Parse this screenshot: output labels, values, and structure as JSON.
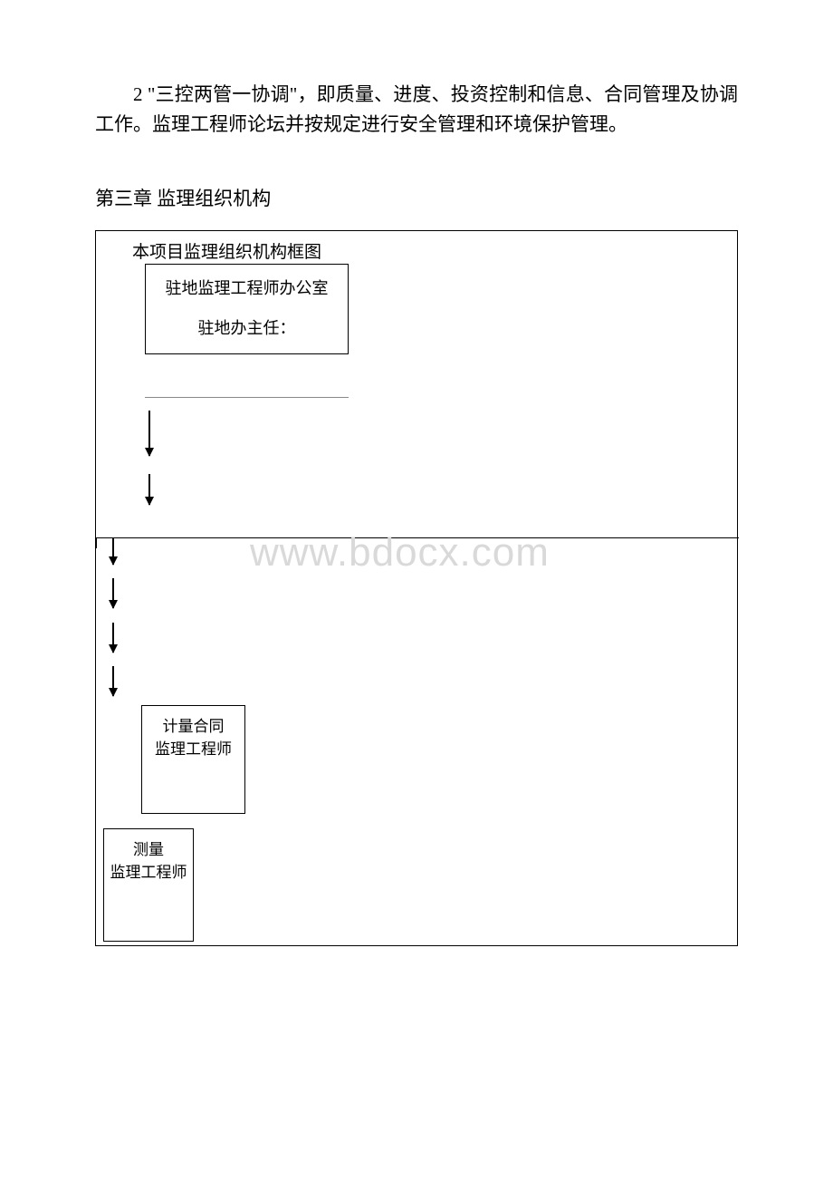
{
  "paragraph": {
    "text": "2 \"三控两管一协调\"，即质量、进度、投资控制和信息、合同管理及协调工作。监理工程师论坛并按规定进行安全管理和环境保护管理。"
  },
  "chapter": {
    "heading": "第三章 监理组织机构"
  },
  "diagram": {
    "title": "本项目监理组织机构框图",
    "office_box": {
      "line1": "驻地监理工程师办公室",
      "line2": "驻地办主任："
    },
    "metering_box": {
      "line1": "计量合同",
      "line2": "监理工程师"
    },
    "survey_box": {
      "line1": "测量",
      "line2": "监理工程师"
    },
    "watermark": "www.bdocx.com",
    "colors": {
      "text": "#000000",
      "border": "#000000",
      "background": "#ffffff",
      "watermark": "#d9d9d9",
      "underline": "#888888"
    },
    "arrows": {
      "type": "vertical-down",
      "head_style": "filled-triangle"
    }
  }
}
